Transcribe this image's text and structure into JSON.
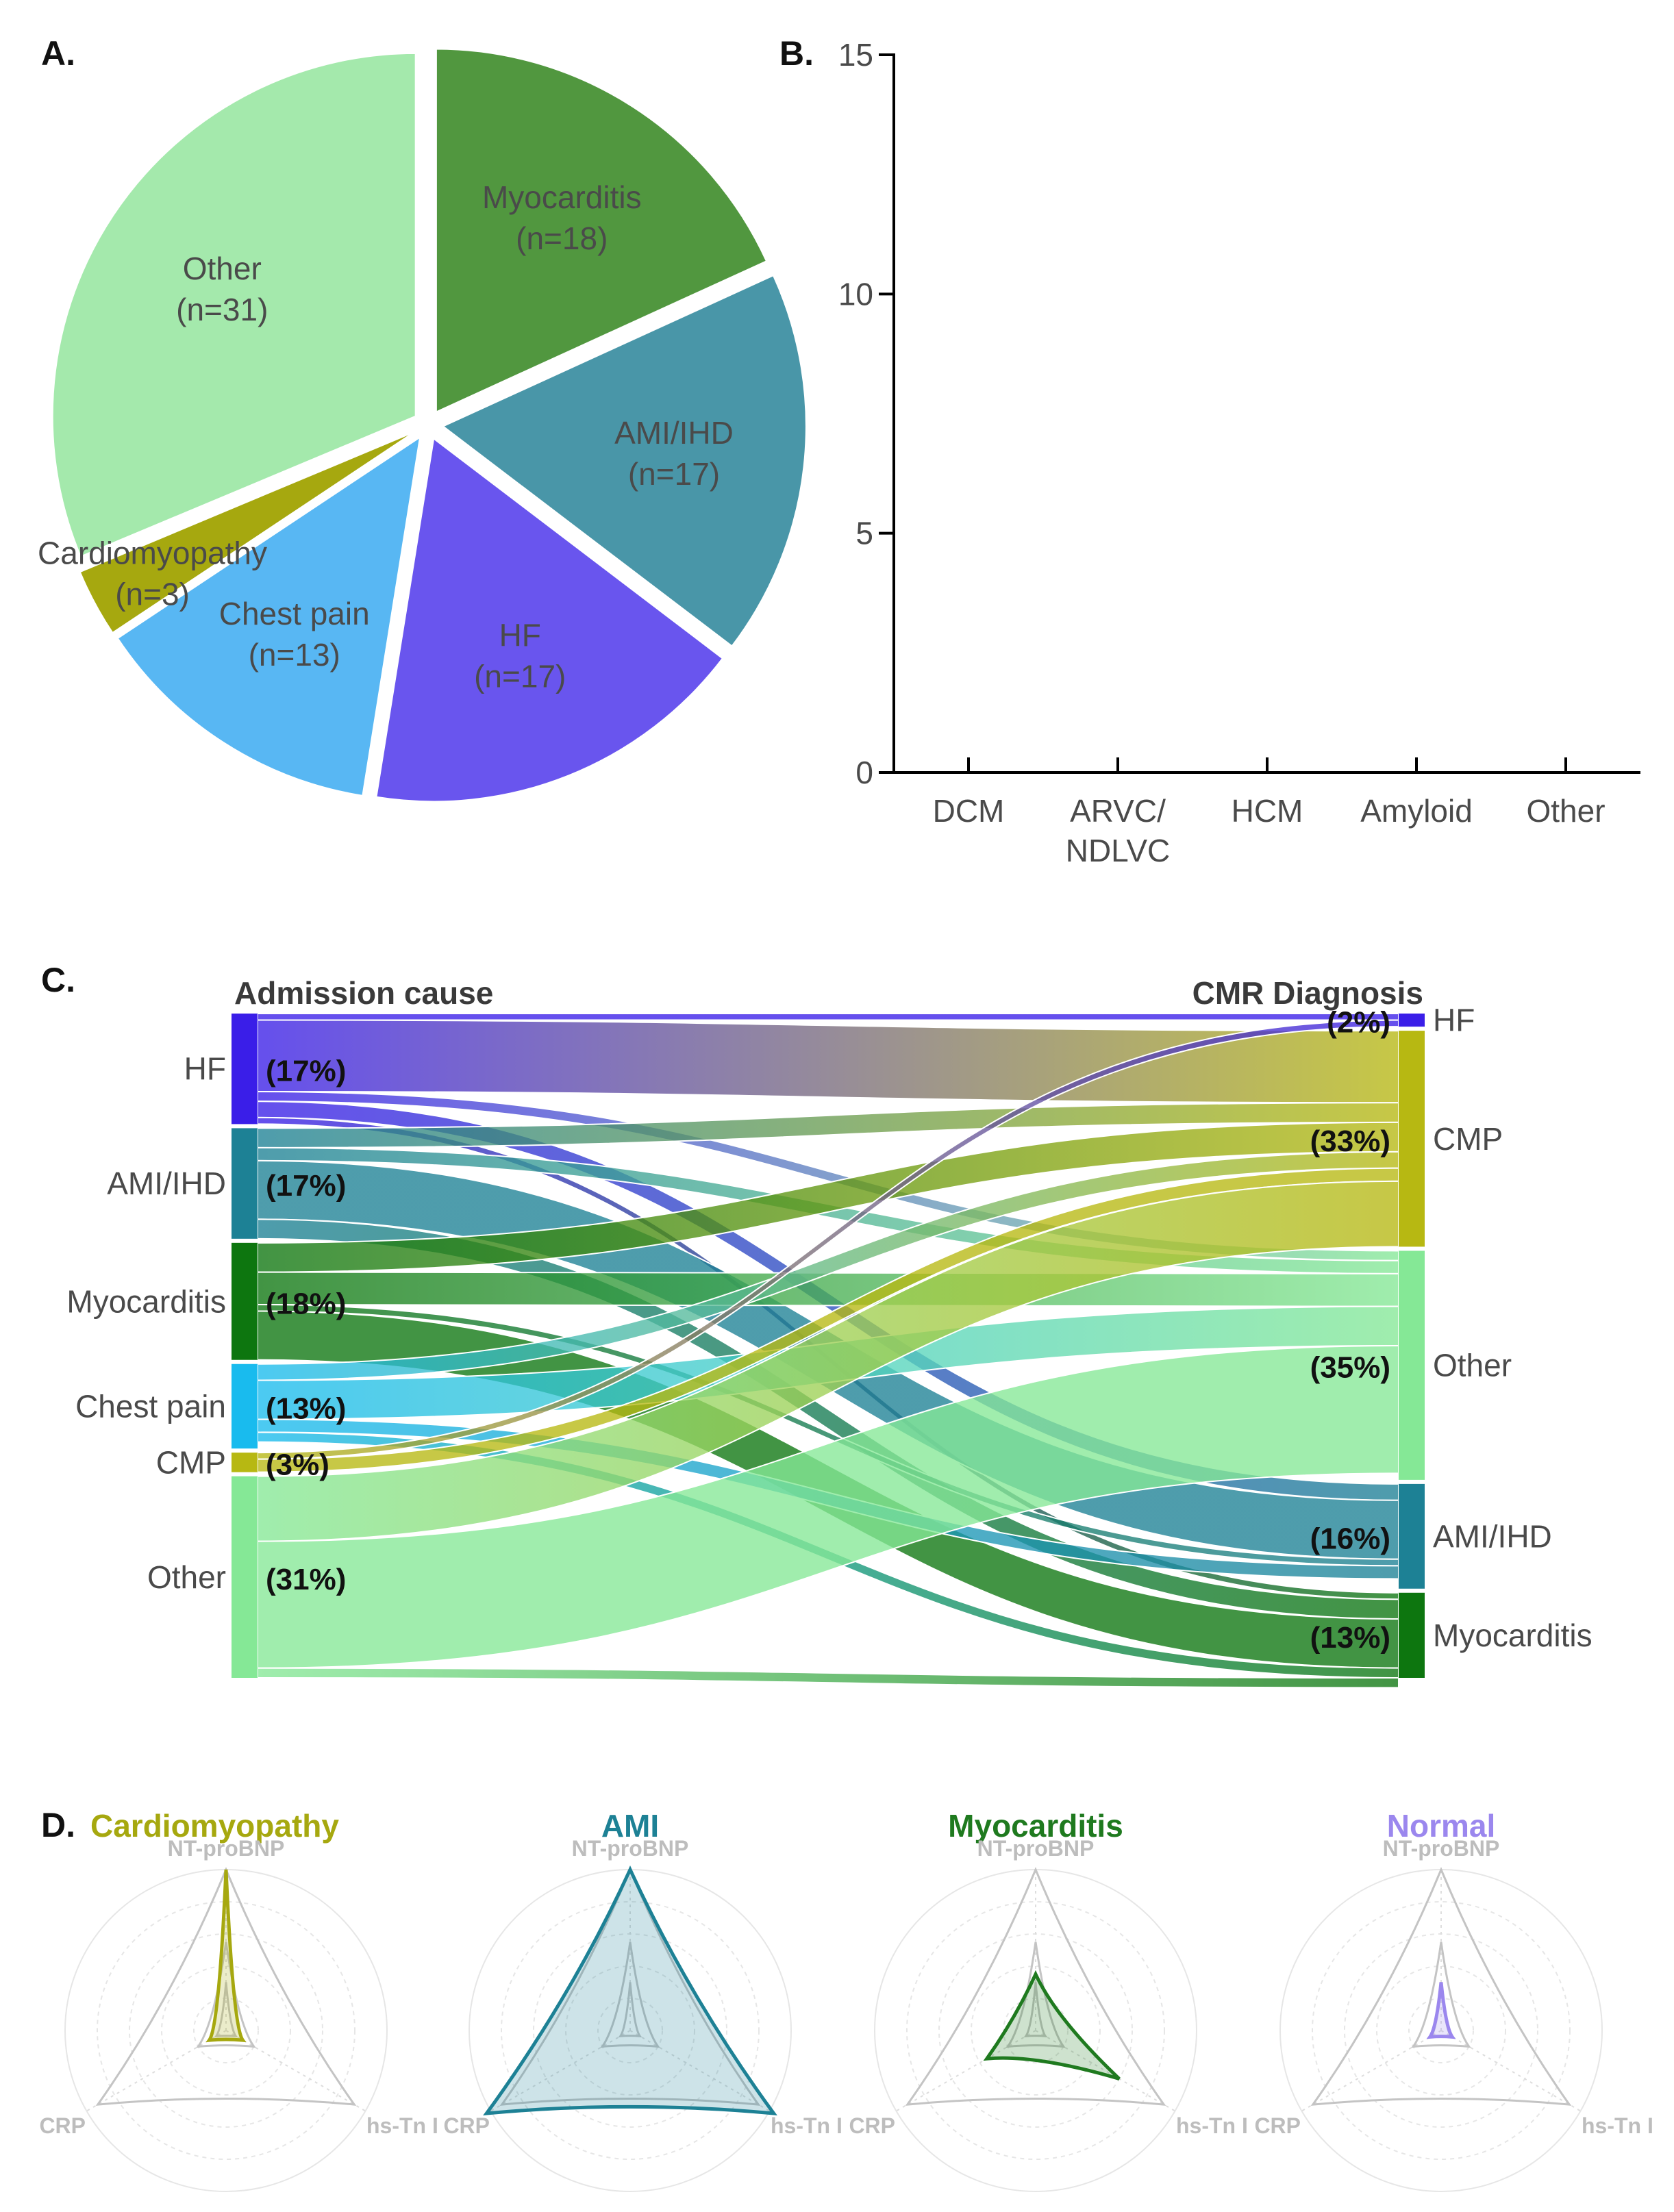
{
  "chart_data": [
    {
      "id": "A",
      "type": "pie",
      "panel_label": "A.",
      "title": "",
      "slices": [
        {
          "label": "Myocarditis",
          "count_label": "(n=18)",
          "value": 18,
          "color": "#51973f"
        },
        {
          "label": "AMI/IHD",
          "count_label": "(n=17)",
          "value": 17,
          "color": "#4996a8"
        },
        {
          "label": "HF",
          "count_label": "(n=17)",
          "value": 17,
          "color": "#6955ee"
        },
        {
          "label": "Chest pain",
          "count_label": "(n=13)",
          "value": 13,
          "color": "#58b7f3"
        },
        {
          "label": "Cardiomyopathy",
          "count_label": "(n=3)",
          "value": 3,
          "color": "#a6a80f"
        },
        {
          "label": "Other",
          "count_label": "(n=31)",
          "value": 31,
          "color": "#a4e9ac"
        }
      ]
    },
    {
      "id": "B",
      "type": "bar",
      "panel_label": "B.",
      "title": "",
      "xlabel": "",
      "ylabel": "",
      "categories": [
        "DCM",
        "ARVC/\nNDLVC",
        "HCM",
        "Amyloid",
        "Other"
      ],
      "values": [
        0,
        0,
        0,
        0,
        0
      ],
      "ylim": [
        0,
        15
      ],
      "yticks": [
        "0",
        "5",
        "10",
        "15"
      ],
      "grid": false
    },
    {
      "id": "C",
      "type": "sankey",
      "panel_label": "C.",
      "left_title": "Admission cause",
      "right_title": "CMR Diagnosis",
      "left_nodes": [
        {
          "label": "HF",
          "pct_label": "(17%)",
          "value": 17,
          "color": "#3a1ee8"
        },
        {
          "label": "AMI/IHD",
          "pct_label": "(17%)",
          "value": 17,
          "color": "#1d8195"
        },
        {
          "label": "Myocarditis",
          "pct_label": "(18%)",
          "value": 18,
          "color": "#0d760f"
        },
        {
          "label": "Chest pain",
          "pct_label": "(13%)",
          "value": 13,
          "color": "#19bbee"
        },
        {
          "label": "CMP",
          "pct_label": "(3%)",
          "value": 3,
          "color": "#b7b812"
        },
        {
          "label": "Other",
          "pct_label": "(31%)",
          "value": 31,
          "color": "#85e896"
        }
      ],
      "right_nodes": [
        {
          "label": "HF",
          "pct_label": "(2%)",
          "value": 2,
          "color": "#3a1ee8"
        },
        {
          "label": "CMP",
          "pct_label": "(33%)",
          "value": 33,
          "color": "#b7b812"
        },
        {
          "label": "Other",
          "pct_label": "(35%)",
          "value": 35,
          "color": "#85e896"
        },
        {
          "label": "AMI/IHD",
          "pct_label": "(16%)",
          "value": 16,
          "color": "#1d8195"
        },
        {
          "label": "Myocarditis",
          "pct_label": "(13%)",
          "value": 13,
          "color": "#0d760f"
        }
      ],
      "links": [
        {
          "source": "HF",
          "target": "HF",
          "value": 1.0
        },
        {
          "source": "HF",
          "target": "CMP",
          "value": 11.0
        },
        {
          "source": "HF",
          "target": "Other",
          "value": 1.5
        },
        {
          "source": "HF",
          "target": "AMI/IHD",
          "value": 2.5
        },
        {
          "source": "HF",
          "target": "Myocarditis",
          "value": 1.0
        },
        {
          "source": "AMI/IHD",
          "target": "CMP",
          "value": 3.0
        },
        {
          "source": "AMI/IHD",
          "target": "Other",
          "value": 2.0
        },
        {
          "source": "AMI/IHD",
          "target": "AMI/IHD",
          "value": 9.0
        },
        {
          "source": "AMI/IHD",
          "target": "Myocarditis",
          "value": 3.0
        },
        {
          "source": "Myocarditis",
          "target": "CMP",
          "value": 4.5
        },
        {
          "source": "Myocarditis",
          "target": "Other",
          "value": 5.0
        },
        {
          "source": "Myocarditis",
          "target": "AMI/IHD",
          "value": 1.0
        },
        {
          "source": "Myocarditis",
          "target": "Myocarditis",
          "value": 7.5
        },
        {
          "source": "Chest pain",
          "target": "CMP",
          "value": 2.5
        },
        {
          "source": "Chest pain",
          "target": "Other",
          "value": 6.0
        },
        {
          "source": "Chest pain",
          "target": "AMI/IHD",
          "value": 2.0
        },
        {
          "source": "Chest pain",
          "target": "Myocarditis",
          "value": 1.5
        },
        {
          "source": "CMP",
          "target": "HF",
          "value": 1.0
        },
        {
          "source": "CMP",
          "target": "CMP",
          "value": 2.0
        },
        {
          "source": "Other",
          "target": "CMP",
          "value": 10.0
        },
        {
          "source": "Other",
          "target": "Other",
          "value": 19.5
        },
        {
          "source": "Other",
          "target": "Myocarditis",
          "value": 1.5
        }
      ]
    },
    {
      "id": "D",
      "type": "radar",
      "panel_label": "D.",
      "axes": [
        "NT-proBNP",
        "hs-Tn I",
        "CRP"
      ],
      "max": 1.0,
      "reference_outlines": [
        [
          1.0,
          0.92,
          0.92
        ],
        [
          0.55,
          0.2,
          0.2
        ],
        [
          0.3,
          0.07,
          0.07
        ]
      ],
      "profiles": [
        {
          "title": "Cardiomyopathy",
          "color": "#a6a80f",
          "values": [
            1.0,
            0.12,
            0.12
          ]
        },
        {
          "title": "AMI",
          "color": "#1d8195",
          "values": [
            1.0,
            1.03,
            1.03
          ]
        },
        {
          "title": "Myocarditis",
          "color": "#1f7a1f",
          "values": [
            0.35,
            0.6,
            0.35
          ]
        },
        {
          "title": "Normal",
          "color": "#9b87ee",
          "values": [
            0.3,
            0.08,
            0.08
          ]
        }
      ]
    }
  ]
}
